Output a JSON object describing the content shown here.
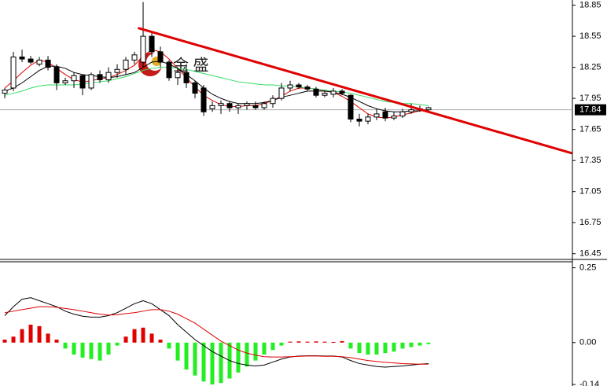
{
  "chart_data": [
    {
      "type": "candlestick",
      "watermark": "金 盛",
      "xlim": [
        -0.55,
        65.64
      ],
      "ylim": [
        16.41,
        18.9
      ],
      "yticks": [
        18.85,
        18.55,
        18.25,
        17.95,
        17.65,
        17.35,
        17.05,
        16.75,
        16.45
      ],
      "last_price": 17.84,
      "open": [
        18.0,
        18.05,
        18.35,
        18.33,
        18.28,
        18.32,
        18.25,
        18.1,
        18.12,
        18.17,
        18.05,
        18.18,
        18.13,
        18.2,
        18.23,
        18.32,
        18.3,
        18.55,
        18.4,
        18.3,
        18.15,
        18.2,
        18.1,
        18.05,
        17.85,
        17.88,
        17.9,
        17.86,
        17.88,
        17.88,
        17.86,
        17.9,
        17.95,
        18.05,
        18.08,
        18.06,
        18.04,
        17.98,
        17.99,
        18.02,
        17.98,
        17.75,
        17.73,
        17.77,
        17.82,
        17.76,
        17.78,
        17.82,
        17.84,
        17.84
      ],
      "high": [
        18.05,
        18.4,
        18.42,
        18.36,
        18.35,
        18.36,
        18.28,
        18.15,
        18.2,
        18.18,
        18.2,
        18.22,
        18.25,
        18.28,
        18.35,
        18.4,
        18.88,
        18.58,
        18.45,
        18.32,
        18.25,
        18.28,
        18.12,
        18.08,
        17.92,
        17.93,
        17.92,
        17.9,
        17.92,
        17.92,
        17.92,
        17.98,
        18.1,
        18.12,
        18.1,
        18.08,
        18.06,
        18.03,
        18.05,
        18.04,
        17.99,
        17.8,
        17.8,
        17.85,
        17.86,
        17.82,
        17.85,
        17.9,
        17.88,
        17.87
      ],
      "low": [
        17.95,
        18.02,
        18.3,
        18.28,
        18.26,
        18.22,
        18.03,
        18.08,
        18.05,
        17.98,
        18.03,
        18.1,
        18.1,
        18.15,
        18.18,
        18.28,
        18.25,
        18.35,
        18.25,
        18.12,
        18.08,
        18.05,
        17.95,
        17.78,
        17.82,
        17.8,
        17.82,
        17.8,
        17.84,
        17.84,
        17.84,
        17.86,
        17.93,
        18.02,
        18.04,
        18.02,
        17.96,
        17.96,
        17.96,
        17.98,
        17.72,
        17.68,
        17.7,
        17.74,
        17.73,
        17.74,
        17.76,
        17.8,
        17.82,
        17.82
      ],
      "close": [
        18.03,
        18.35,
        18.33,
        18.3,
        18.32,
        18.25,
        18.1,
        18.12,
        18.17,
        18.05,
        18.18,
        18.13,
        18.2,
        18.23,
        18.32,
        18.37,
        18.55,
        18.4,
        18.3,
        18.15,
        18.2,
        18.1,
        18.0,
        17.82,
        17.88,
        17.9,
        17.86,
        17.88,
        17.9,
        17.86,
        17.9,
        17.95,
        18.05,
        18.08,
        18.06,
        18.04,
        17.98,
        18.0,
        18.02,
        18.0,
        17.75,
        17.73,
        17.77,
        17.8,
        17.76,
        17.78,
        17.82,
        17.84,
        17.85,
        17.86
      ],
      "series": [
        {
          "color": "#e00000",
          "values": [
            18.05,
            18.12,
            18.2,
            18.27,
            18.32,
            18.3,
            18.24,
            18.18,
            18.13,
            18.11,
            18.12,
            18.14,
            18.15,
            18.18,
            18.22,
            18.27,
            18.36,
            18.42,
            18.4,
            18.33,
            18.24,
            18.15,
            18.06,
            17.98,
            17.93,
            17.89,
            17.87,
            17.87,
            17.88,
            17.88,
            17.9,
            17.93,
            17.97,
            18.02,
            18.05,
            18.05,
            18.04,
            18.02,
            18.01,
            17.97,
            17.92,
            17.86,
            17.8,
            17.77,
            17.76,
            17.77,
            17.79,
            17.81,
            17.83,
            17.84
          ]
        },
        {
          "color": "#000000",
          "values": [
            18.02,
            18.05,
            18.1,
            18.16,
            18.22,
            18.26,
            18.26,
            18.24,
            18.2,
            18.18,
            18.17,
            18.16,
            18.15,
            18.16,
            18.18,
            18.2,
            18.25,
            18.3,
            18.31,
            18.28,
            18.24,
            18.18,
            18.12,
            18.05,
            17.99,
            17.95,
            17.92,
            17.9,
            17.9,
            17.9,
            17.91,
            17.93,
            17.96,
            17.98,
            18.0,
            18.02,
            18.02,
            18.02,
            18.01,
            17.99,
            17.96,
            17.92,
            17.88,
            17.85,
            17.83,
            17.82,
            17.82,
            17.83,
            17.83,
            17.84
          ]
        },
        {
          "color": "#33dd66",
          "values": [
            17.98,
            18.0,
            18.02,
            18.05,
            18.07,
            18.08,
            18.08,
            18.08,
            18.08,
            18.09,
            18.1,
            18.11,
            18.12,
            18.14,
            18.16,
            18.19,
            18.22,
            18.24,
            18.25,
            18.25,
            18.24,
            18.23,
            18.21,
            18.19,
            18.17,
            18.15,
            18.13,
            18.11,
            18.1,
            18.09,
            18.08,
            18.08,
            18.07,
            18.07,
            18.06,
            18.05,
            18.04,
            18.03,
            18.02,
            18.01,
            18.0,
            17.98,
            17.96,
            17.94,
            17.92,
            17.91,
            17.9,
            17.9,
            17.89,
            17.88
          ]
        }
      ],
      "trend_line": {
        "x": [
          15.4,
          65.6
        ],
        "values": [
          18.63,
          17.42
        ],
        "color": "#e00000"
      }
    },
    {
      "type": "macd",
      "xlim": [
        -0.55,
        65.64
      ],
      "ylim": [
        -0.145,
        0.27
      ],
      "yticks": [
        0.25,
        {
          "value": 0,
          "label": "0.00"
        },
        -0.14
      ],
      "positive_color": "#e00000",
      "negative_color": "#22ee22",
      "histogram": [
        0.01,
        0.02,
        0.045,
        0.06,
        0.055,
        0.03,
        0.01,
        -0.02,
        -0.04,
        -0.05,
        -0.055,
        -0.06,
        -0.04,
        -0.01,
        0.02,
        0.045,
        0.05,
        0.03,
        0.01,
        -0.02,
        -0.06,
        -0.09,
        -0.11,
        -0.13,
        -0.14,
        -0.135,
        -0.12,
        -0.1,
        -0.08,
        -0.06,
        -0.04,
        -0.025,
        -0.01,
        0.003,
        0.004,
        0.003,
        0.004,
        0.003,
        0.002,
        0.005,
        -0.02,
        -0.035,
        -0.04,
        -0.04,
        -0.035,
        -0.03,
        -0.02,
        -0.015,
        -0.01,
        -0.005
      ],
      "series": [
        {
          "color": "#000000",
          "values": [
            0.09,
            0.12,
            0.145,
            0.15,
            0.14,
            0.13,
            0.12,
            0.105,
            0.095,
            0.088,
            0.085,
            0.085,
            0.09,
            0.1,
            0.115,
            0.13,
            0.14,
            0.13,
            0.11,
            0.09,
            0.06,
            0.035,
            0.01,
            -0.01,
            -0.03,
            -0.045,
            -0.06,
            -0.07,
            -0.075,
            -0.078,
            -0.075,
            -0.065,
            -0.055,
            -0.048,
            -0.045,
            -0.044,
            -0.044,
            -0.045,
            -0.045,
            -0.048,
            -0.06,
            -0.07,
            -0.075,
            -0.08,
            -0.082,
            -0.08,
            -0.078,
            -0.075,
            -0.072,
            -0.07
          ]
        },
        {
          "color": "#e00000",
          "values": [
            0.1,
            0.105,
            0.11,
            0.115,
            0.12,
            0.12,
            0.118,
            0.114,
            0.11,
            0.105,
            0.1,
            0.095,
            0.092,
            0.093,
            0.097,
            0.1,
            0.105,
            0.11,
            0.11,
            0.105,
            0.095,
            0.08,
            0.065,
            0.045,
            0.025,
            0.005,
            -0.01,
            -0.025,
            -0.035,
            -0.042,
            -0.047,
            -0.048,
            -0.048,
            -0.047,
            -0.046,
            -0.045,
            -0.045,
            -0.046,
            -0.046,
            -0.047,
            -0.05,
            -0.055,
            -0.06,
            -0.063,
            -0.066,
            -0.068,
            -0.07,
            -0.071,
            -0.072,
            -0.072
          ]
        }
      ]
    }
  ]
}
